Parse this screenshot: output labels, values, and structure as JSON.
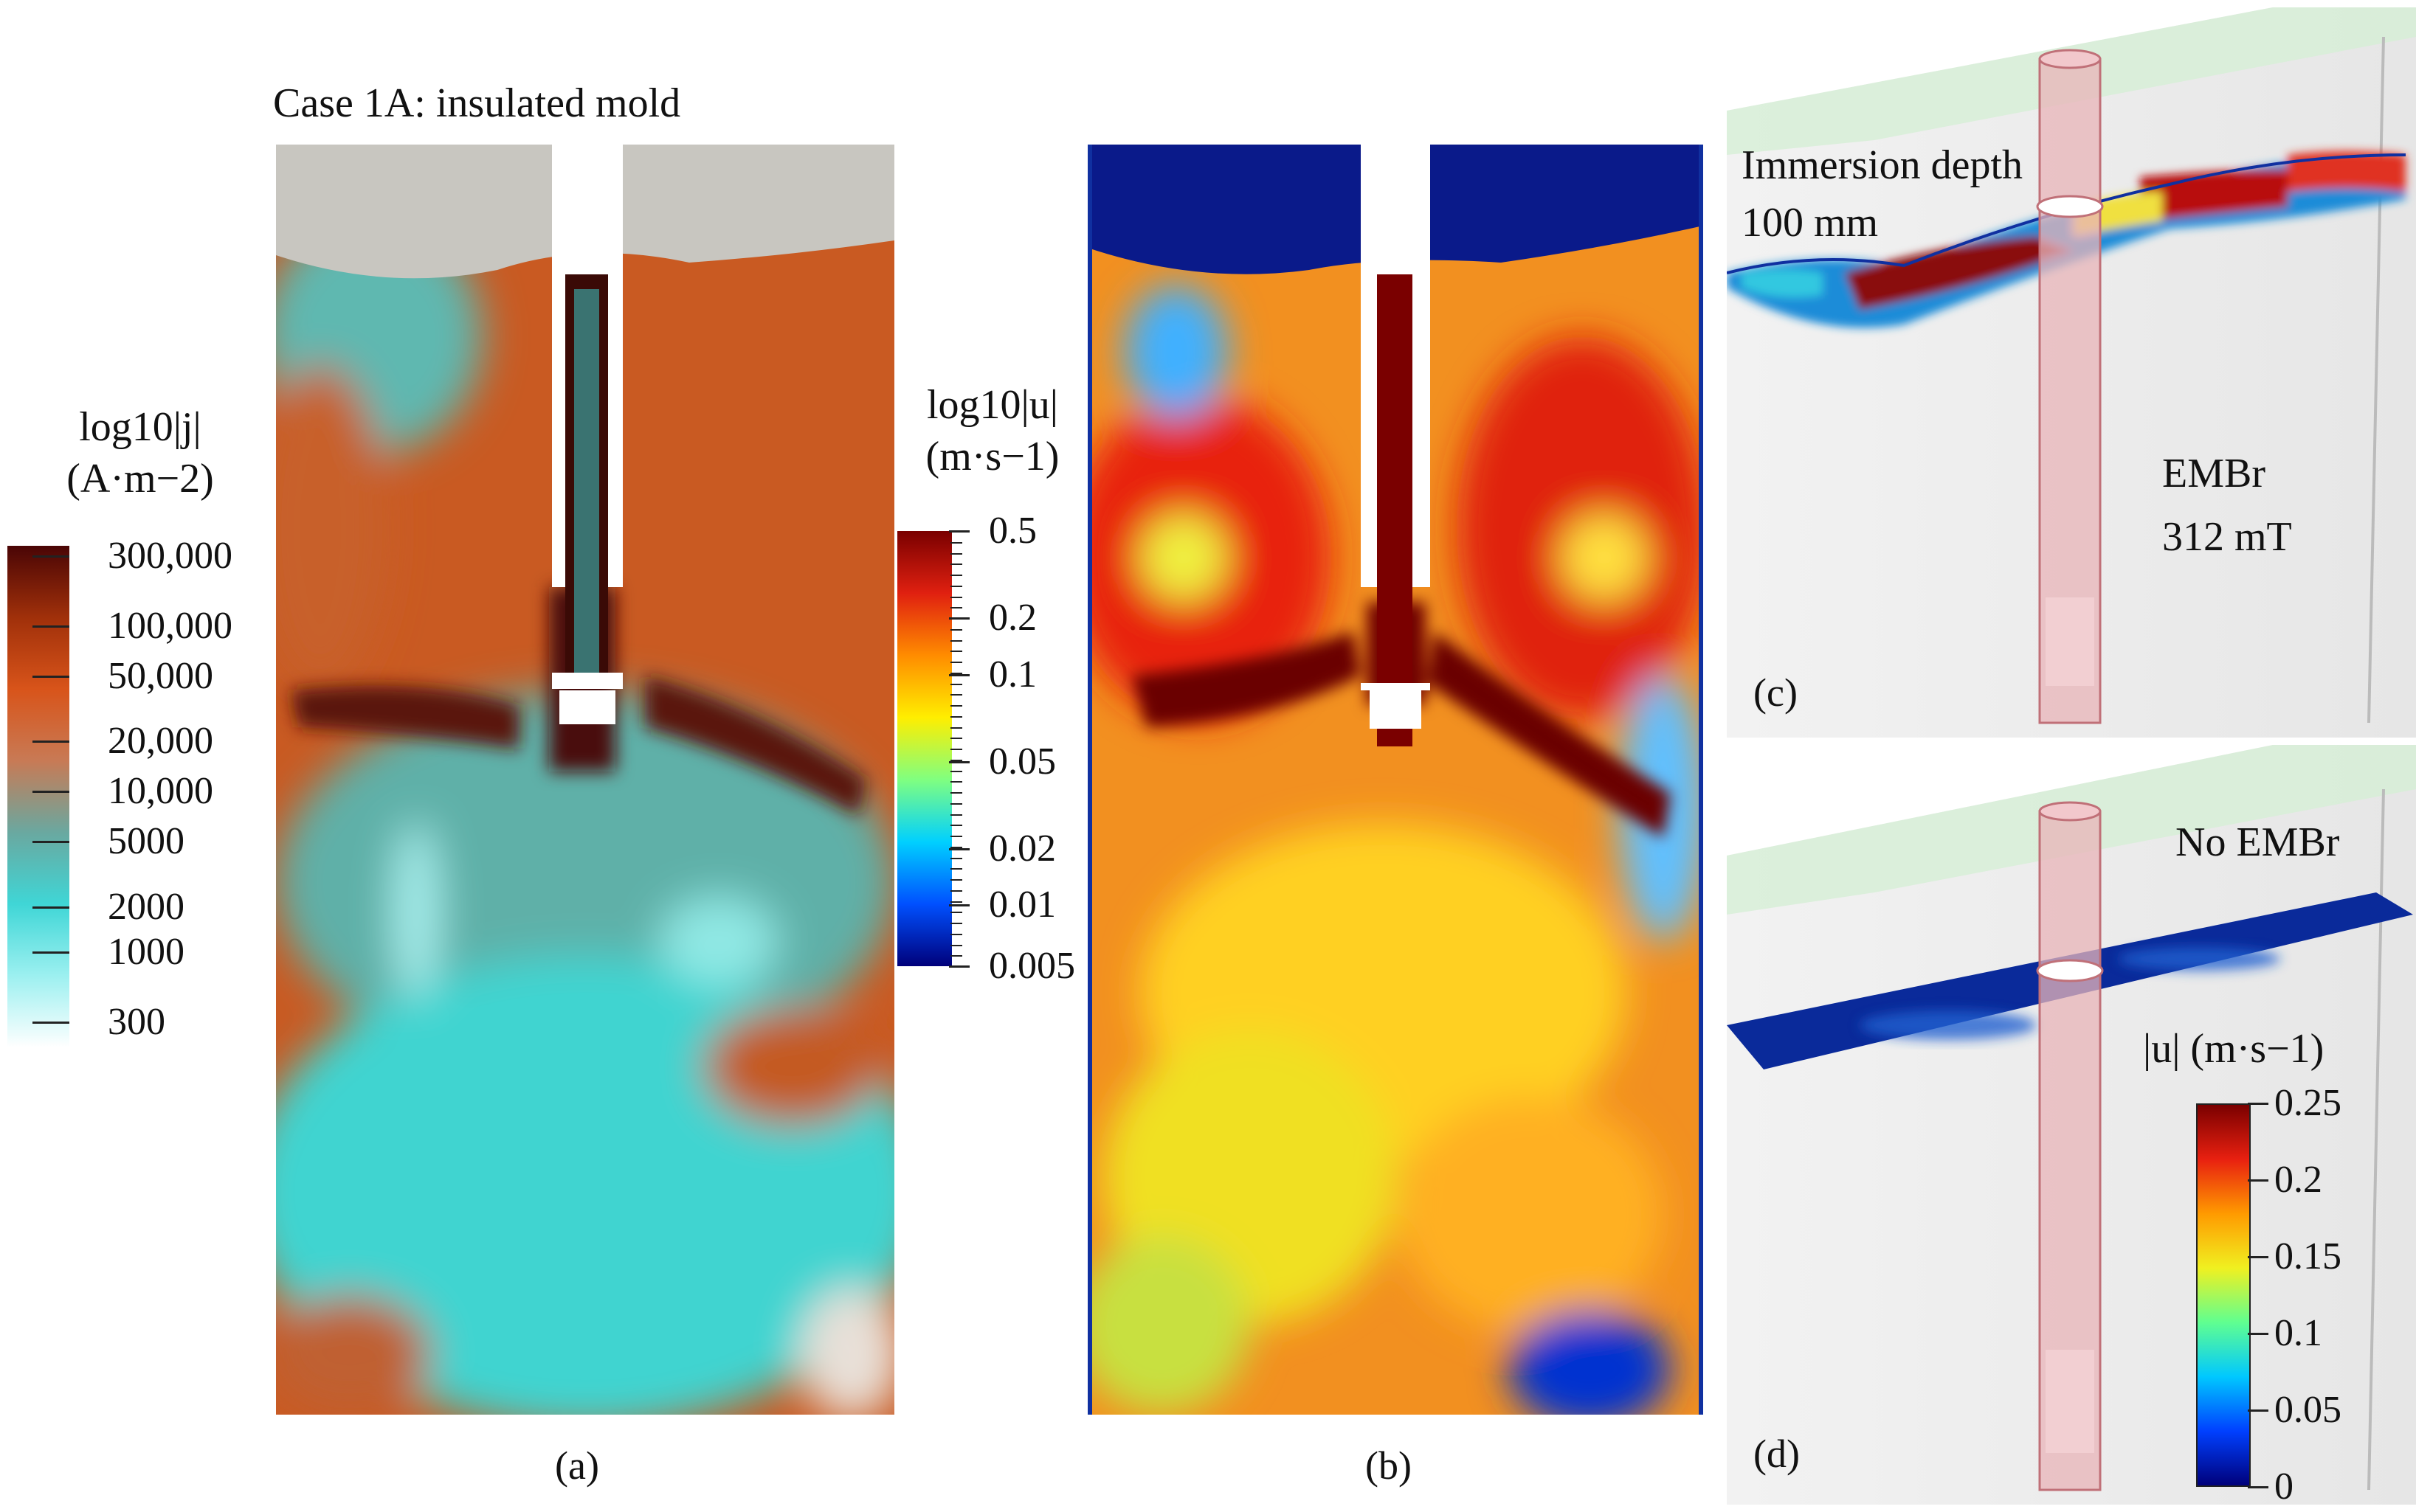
{
  "panel_a": {
    "title": "Case 1A: insulated mold",
    "letter": "(a)",
    "colorbar": {
      "quantity": "log10|j|",
      "unit": "A·m−2",
      "ticks": [
        "300,000",
        "100,000",
        "50,000",
        "20,000",
        "10,000",
        "5000",
        "2000",
        "1000",
        "300"
      ],
      "colors": [
        "#4a0505",
        "#a0300a",
        "#d8541a",
        "#c87a55",
        "#6aa8a0",
        "#3fd6d6",
        "#9cf0f0",
        "#ffffff"
      ]
    }
  },
  "panel_b": {
    "letter": "(b)",
    "colorbar": {
      "quantity": "log10|u|",
      "unit": "m·s−1",
      "ticks": [
        "0.5",
        "0.2",
        "0.1",
        "0.05",
        "0.02",
        "0.01",
        "0.005"
      ],
      "colors": [
        "#7a0000",
        "#e02010",
        "#ff8c00",
        "#ffee00",
        "#80ff80",
        "#00d0ff",
        "#0050ff",
        "#00007a"
      ]
    }
  },
  "panel_c": {
    "letter": "(c)",
    "label_depth_1": "Immersion depth",
    "label_depth_2": "100 mm",
    "label_field_1": "EMBr",
    "label_field_2": "312 mT"
  },
  "panel_d": {
    "letter": "(d)",
    "label_field": "No EMBr",
    "colorbar": {
      "quantity": "|u|",
      "unit": "m·s−1",
      "ticks": [
        "0.25",
        "0.2",
        "0.15",
        "0.1",
        "0.05",
        "0"
      ]
    }
  }
}
